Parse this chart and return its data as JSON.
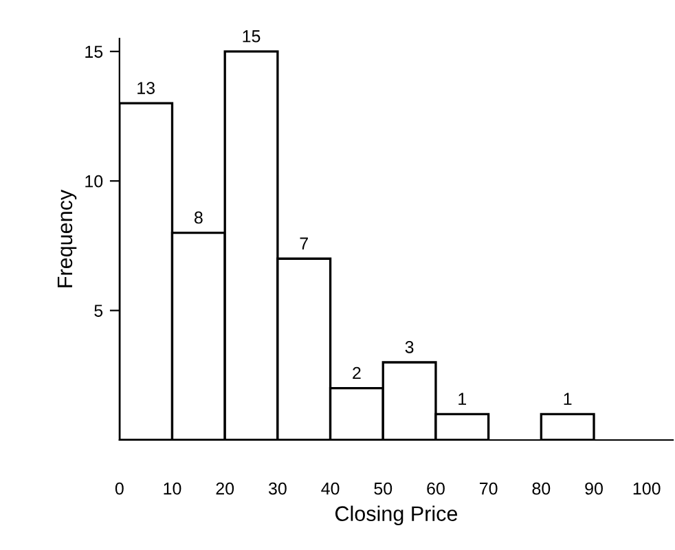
{
  "chart_data": {
    "type": "histogram",
    "xlabel": "Closing Price",
    "ylabel": "Frequency",
    "bins": [
      0,
      10,
      20,
      30,
      40,
      50,
      60,
      70,
      80,
      90,
      100
    ],
    "values": [
      13,
      8,
      15,
      7,
      2,
      3,
      1,
      0,
      1,
      0
    ],
    "value_labels": [
      "13",
      "8",
      "15",
      "7",
      "2",
      "3",
      "1",
      null,
      "1",
      null
    ],
    "color": "#ffffff",
    "xlim": [
      0,
      105
    ],
    "xticks": [
      0,
      10,
      20,
      30,
      40,
      50,
      60,
      70,
      80,
      90,
      100
    ],
    "ylim": [
      0,
      15.5
    ],
    "yticks": [
      5,
      10,
      15
    ],
    "grid": false
  }
}
